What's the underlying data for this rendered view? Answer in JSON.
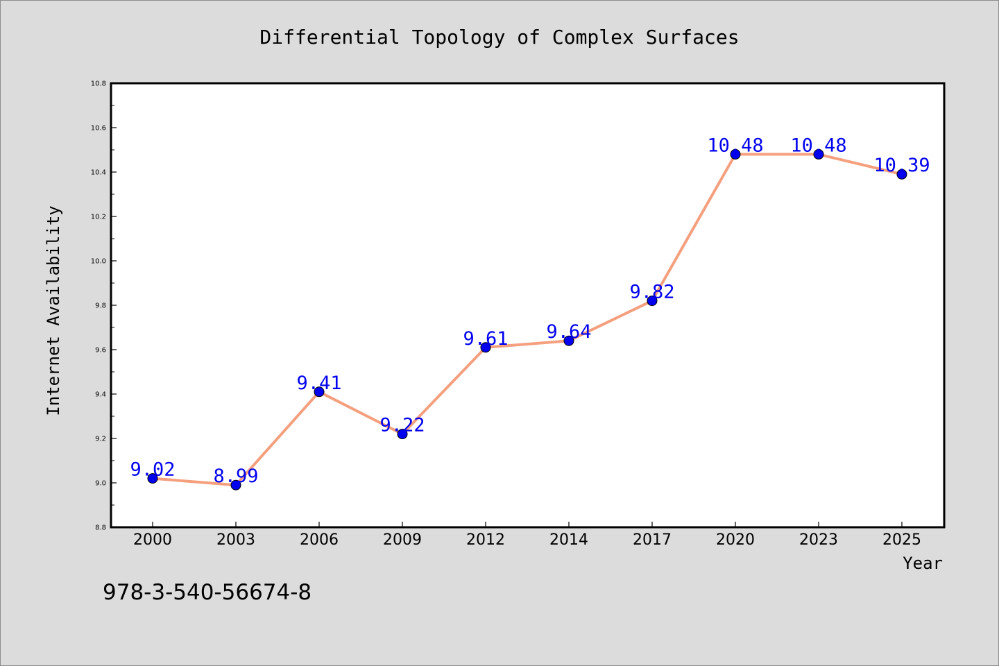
{
  "chart_data": {
    "type": "line",
    "title": "Differential Topology of Complex Surfaces",
    "xlabel": "Year",
    "ylabel": "Internet Availability",
    "categories": [
      "2000",
      "2003",
      "2006",
      "2009",
      "2012",
      "2014",
      "2017",
      "2020",
      "2023",
      "2025"
    ],
    "series": [
      {
        "values": [
          9.02,
          8.99,
          9.41,
          9.22,
          9.61,
          9.64,
          9.82,
          10.48,
          10.48,
          10.39
        ],
        "data_labels": [
          "9.02",
          "8.99",
          "9.41",
          "9.22",
          "9.61",
          "9.64",
          "9.82",
          "10.48",
          "10.48",
          "10.39"
        ]
      }
    ],
    "ylim": [
      8.8,
      10.8
    ],
    "yticks": [
      "8.8",
      "9.0",
      "9.2",
      "9.4",
      "9.6",
      "9.8",
      "10.0",
      "10.2",
      "10.4",
      "10.6",
      "10.8"
    ],
    "grid": false,
    "colors": {
      "line": "#f4a07e",
      "marker": "#0000ee",
      "label": "#0000ee",
      "background": "#dcdcdc",
      "plot_background": "#ffffff"
    }
  },
  "annotation": {
    "isbn": "978-3-540-56674-8"
  }
}
